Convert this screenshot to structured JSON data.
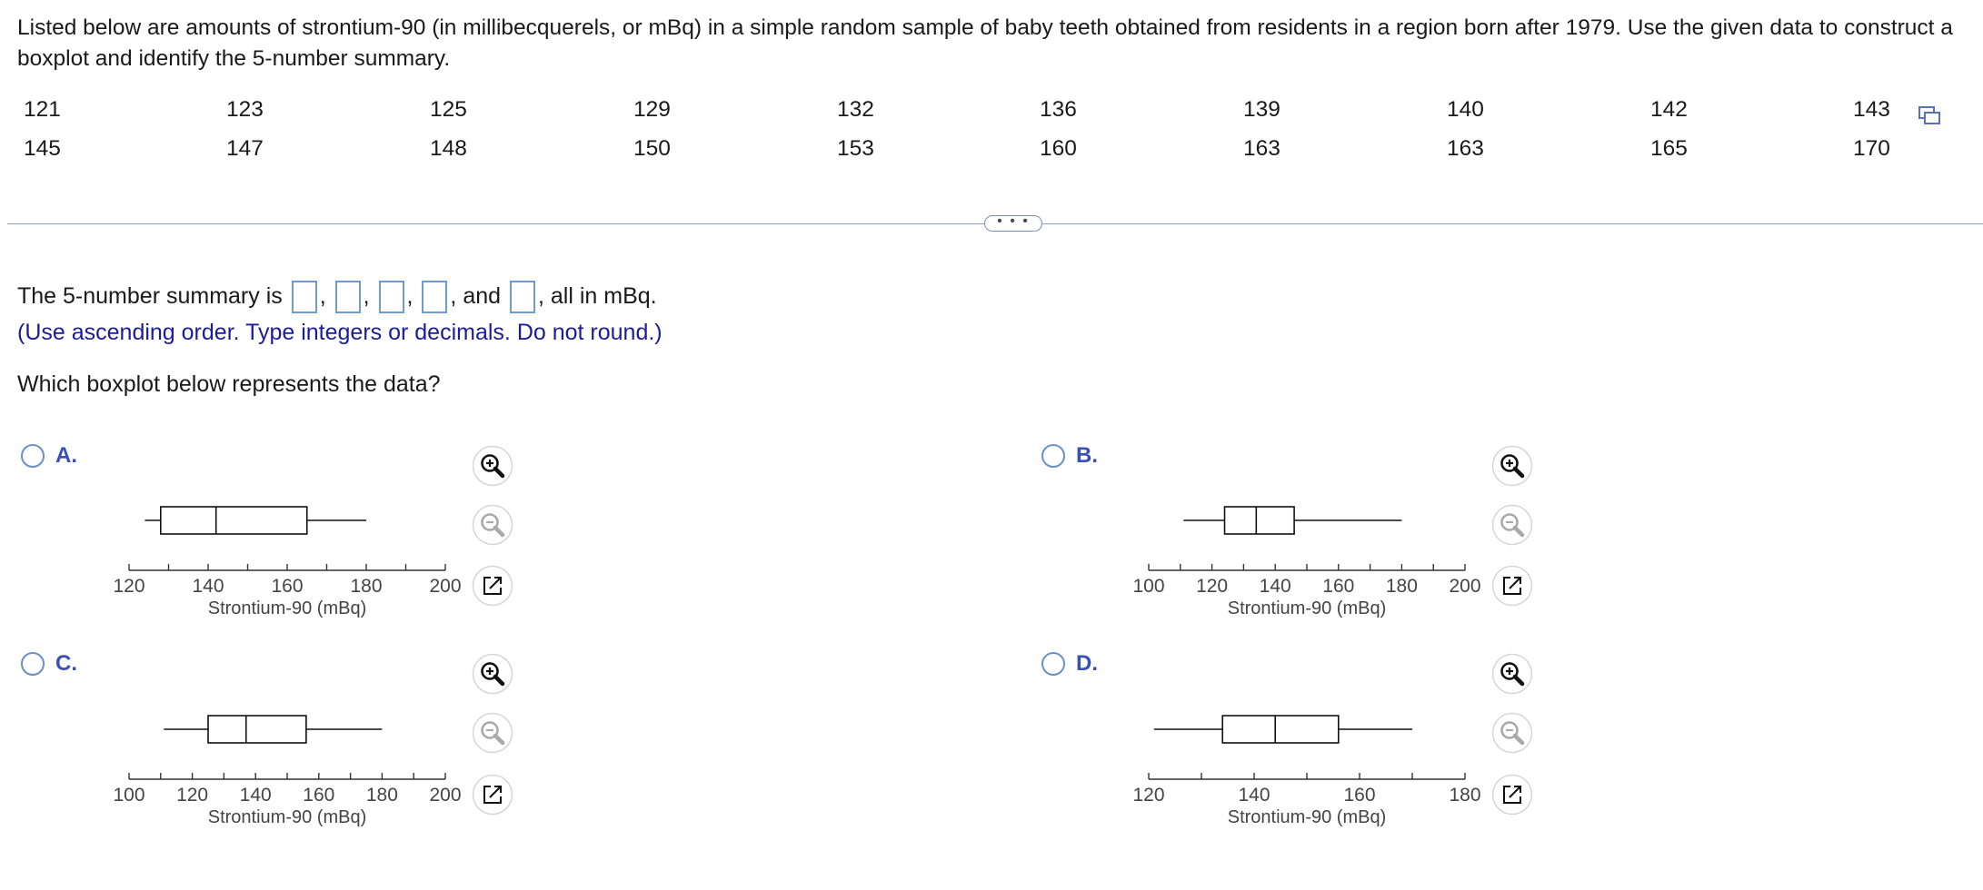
{
  "question": {
    "text": "Listed below are amounts of strontium-90 (in millibecquerels, or mBq) in a simple random sample of baby teeth obtained from residents in a region born after 1979. Use the given data to construct a boxplot and identify the 5-number summary."
  },
  "data_table": {
    "rows": [
      [
        "121",
        "123",
        "125",
        "129",
        "132",
        "136",
        "139",
        "140",
        "142",
        "143"
      ],
      [
        "145",
        "147",
        "148",
        "150",
        "153",
        "160",
        "163",
        "163",
        "165",
        "170"
      ]
    ]
  },
  "divider": {
    "more_label": "• • •"
  },
  "summary": {
    "prefix": "The 5-number summary is",
    "sep": ",",
    "and": ", and",
    "suffix": ", all in mBq.",
    "instructions": "(Use ascending order. Type integers or decimals. Do not round.)"
  },
  "boxplot_question": "Which boxplot below represents the data?",
  "colors": {
    "link_blue": "#1b1c9a",
    "radio_blue": "#6d8fc9",
    "option_letter": "#3a4fb8",
    "input_border": "#6e9bd8"
  },
  "icons": {
    "zoom_in": "zoom-in-icon",
    "zoom_out": "zoom-out-icon",
    "popout": "popout-icon",
    "copy": "copy-icon"
  },
  "chart_data": [
    {
      "type": "boxplot",
      "option": "A.",
      "xlabel": "Strontium-90 (mBq)",
      "xlim": [
        120,
        200
      ],
      "ticks": [
        120,
        130,
        140,
        150,
        160,
        170,
        180,
        190,
        200
      ],
      "tick_labels": [
        "120",
        "140",
        "160",
        "180",
        "200"
      ],
      "five_number": [
        124,
        128,
        142,
        165,
        180
      ]
    },
    {
      "type": "boxplot",
      "option": "B.",
      "xlabel": "Strontium-90 (mBq)",
      "xlim": [
        100,
        200
      ],
      "ticks": [
        100,
        110,
        120,
        130,
        140,
        150,
        160,
        170,
        180,
        190,
        200
      ],
      "tick_labels": [
        "100",
        "120",
        "140",
        "160",
        "180",
        "200"
      ],
      "five_number": [
        111,
        124,
        134,
        146,
        180
      ]
    },
    {
      "type": "boxplot",
      "option": "C.",
      "xlabel": "Strontium-90 (mBq)",
      "xlim": [
        100,
        200
      ],
      "ticks": [
        100,
        110,
        120,
        130,
        140,
        150,
        160,
        170,
        180,
        190,
        200
      ],
      "tick_labels": [
        "100",
        "120",
        "140",
        "160",
        "180",
        "200"
      ],
      "five_number": [
        111,
        125,
        137,
        156,
        180
      ]
    },
    {
      "type": "boxplot",
      "option": "D.",
      "xlabel": "Strontium-90 (mBq)",
      "xlim": [
        120,
        180
      ],
      "ticks": [
        120,
        130,
        140,
        150,
        160,
        170,
        180
      ],
      "tick_labels": [
        "120",
        "140",
        "160",
        "180"
      ],
      "five_number": [
        121,
        134,
        144,
        156,
        170
      ]
    }
  ]
}
